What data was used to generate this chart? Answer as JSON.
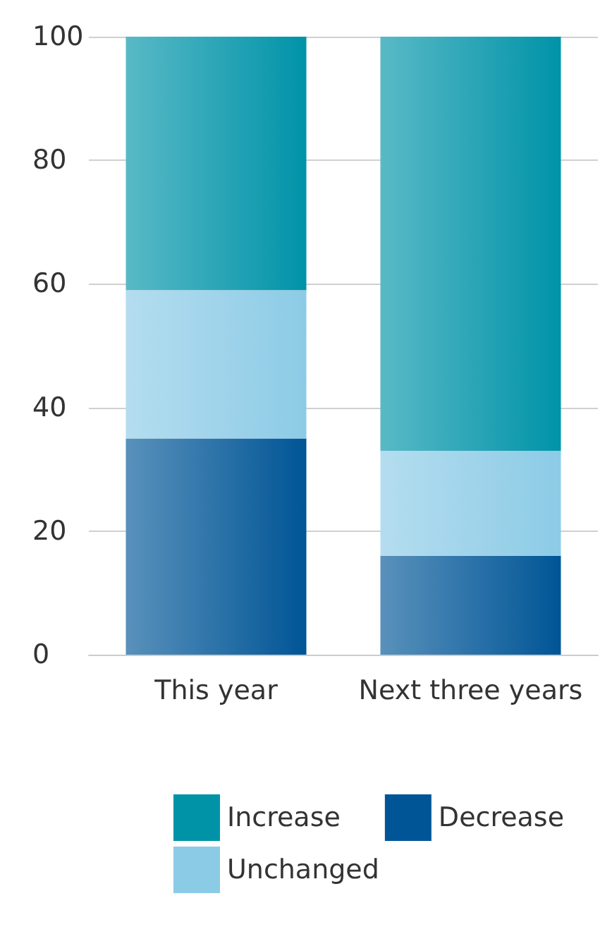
{
  "chart_data": {
    "type": "bar",
    "stacked": true,
    "categories": [
      "This year",
      "Next three years"
    ],
    "series": [
      {
        "name": "Decrease",
        "color": "#005596",
        "values": [
          35,
          16
        ]
      },
      {
        "name": "Unchanged",
        "color": "#8ccbe6",
        "values": [
          24,
          17
        ]
      },
      {
        "name": "Increase",
        "color": "#0093a8",
        "values": [
          41,
          67
        ]
      }
    ],
    "ylim": [
      0,
      100
    ],
    "yticks": [
      0,
      20,
      40,
      60,
      80,
      100
    ],
    "grid": "y",
    "legend": "bottom"
  }
}
